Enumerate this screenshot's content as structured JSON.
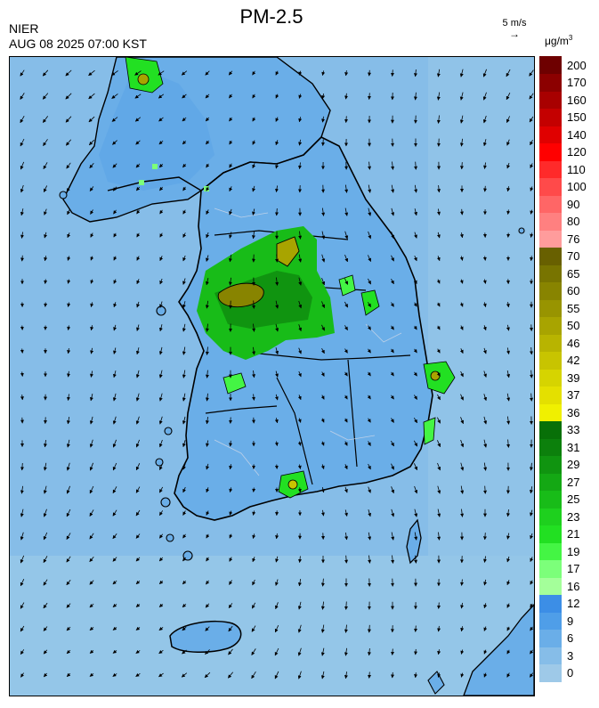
{
  "header": {
    "title": "PM-2.5",
    "org": "NIER",
    "datetime": "AUG 08 2025 07:00 KST",
    "wind_scale": "5 m/s",
    "unit": "μg/m",
    "unit_sup": "3"
  },
  "legend": {
    "labels": [
      "0",
      "3",
      "6",
      "9",
      "12",
      "16",
      "17",
      "19",
      "21",
      "23",
      "25",
      "27",
      "29",
      "31",
      "33",
      "36",
      "37",
      "39",
      "42",
      "46",
      "50",
      "55",
      "60",
      "65",
      "70",
      "76",
      "80",
      "90",
      "100",
      "110",
      "120",
      "140",
      "150",
      "160",
      "170",
      "200"
    ],
    "colors": [
      "#9ec9e8",
      "#86bde8",
      "#6aaee8",
      "#4f9ee8",
      "#3c8ee6",
      "#a4ff9a",
      "#7cff7a",
      "#44f544",
      "#22e022",
      "#1ed01e",
      "#18bc18",
      "#14a814",
      "#109410",
      "#0c800c",
      "#087008",
      "#f0f000",
      "#e4e000",
      "#d6d400",
      "#c8c400",
      "#b8b400",
      "#a8a400",
      "#989400",
      "#888400",
      "#787400",
      "#686000",
      "#ff9c9c",
      "#ff8080",
      "#ff6666",
      "#ff4a4a",
      "#ff2a2a",
      "#ff0000",
      "#e00000",
      "#c40000",
      "#a80000",
      "#8c0000",
      "#6e0000"
    ]
  },
  "colors": {
    "sea": "#86bde8",
    "land_low": "#6aaee8",
    "coast": "#000000",
    "admin": "#bcd0e8"
  }
}
